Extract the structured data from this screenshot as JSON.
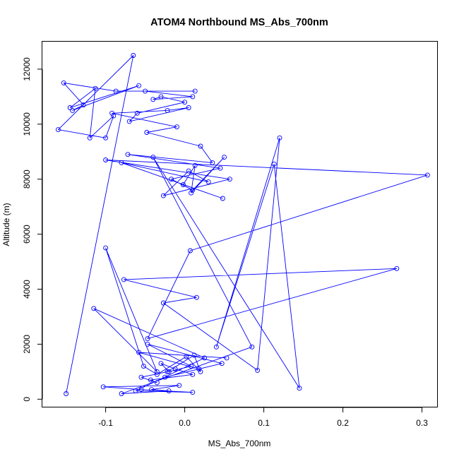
{
  "chart_data": {
    "type": "line",
    "title": "ATOM4 Northbound MS_Abs_700nm",
    "xlabel": "MS_Abs_700nm",
    "ylabel": "Altitude (m)",
    "xlim": [
      -0.18,
      0.32
    ],
    "ylim": [
      -300,
      13000
    ],
    "x_ticks": [
      -0.1,
      0.0,
      0.1,
      0.2,
      0.3
    ],
    "x_tick_labels": [
      "-0.1",
      "0.0",
      "0.1",
      "0.2",
      "0.3"
    ],
    "y_ticks": [
      0,
      2000,
      4000,
      6000,
      8000,
      10000,
      12000
    ],
    "y_tick_labels": [
      "0",
      "2000",
      "4000",
      "6000",
      "8000",
      "10000",
      "12000"
    ],
    "grid": false,
    "legend": "none",
    "colors": {
      "series": "#0000ff",
      "axes": "#000000"
    },
    "series": [
      {
        "marker": "open-circle",
        "x": [
          -0.15,
          -0.065,
          -0.16,
          -0.1,
          -0.09,
          -0.12,
          -0.113,
          -0.145,
          -0.058,
          -0.142,
          -0.128,
          -0.153,
          -0.087,
          0.013,
          -0.05,
          0.01,
          -0.04,
          -0.03,
          0.0,
          -0.06,
          -0.07,
          0.005,
          -0.022,
          -0.092,
          -0.01,
          -0.048,
          0.02,
          0.035,
          -0.072,
          0.045,
          -0.017,
          0.01,
          0.05,
          0.008,
          0.013,
          -0.002,
          0.048,
          -0.08,
          0.03,
          0.005,
          -0.027,
          0.057,
          -0.1,
          0.307,
          0.007,
          -0.047,
          0.268,
          -0.077,
          0.015,
          -0.027,
          0.092,
          0.12,
          0.04,
          0.113,
          0.145,
          -0.04,
          0.085,
          -0.08,
          -0.02,
          -0.042,
          -0.007,
          -0.103,
          -0.055,
          0.01,
          -0.062,
          0.025,
          -0.115,
          -0.035,
          -0.1,
          -0.052,
          -0.035,
          0.002,
          0.02,
          0.012,
          -0.022,
          -0.055,
          -0.035,
          -0.043,
          0.01,
          -0.012,
          -0.03,
          -0.02,
          0.008,
          -0.047,
          0.047,
          -0.025,
          0.018,
          -0.058,
          0.053
        ],
        "y": [
          200,
          12500,
          9800,
          9500,
          10300,
          9500,
          11300,
          10600,
          11400,
          10500,
          10700,
          11500,
          11200,
          11200,
          11200,
          11000,
          10900,
          11000,
          10800,
          10400,
          10100,
          10600,
          10500,
          10400,
          9900,
          9700,
          9200,
          8600,
          8900,
          8400,
          8000,
          7600,
          8800,
          7500,
          8500,
          7800,
          7300,
          8600,
          7900,
          8300,
          7400,
          8000,
          8700,
          8150,
          5400,
          2200,
          4750,
          4350,
          3700,
          3500,
          1050,
          9500,
          1900,
          8550,
          400,
          8800,
          1900,
          200,
          300,
          350,
          500,
          450,
          350,
          250,
          300,
          1500,
          3300,
          1000,
          5500,
          1200,
          900,
          1550,
          1000,
          1600,
          1000,
          800,
          600,
          700,
          900,
          1100,
          1300,
          1000,
          1200,
          2000,
          1300,
          800,
          1100,
          1700,
          1500
        ]
      }
    ]
  }
}
